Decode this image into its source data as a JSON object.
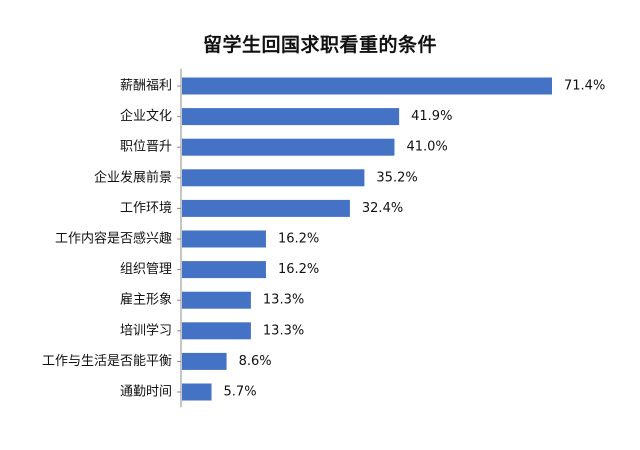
{
  "chart_data": {
    "type": "bar",
    "orientation": "horizontal",
    "title": "留学生回国求职看重的条件",
    "categories": [
      "薪酬福利",
      "企业文化",
      "职位晋升",
      "企业发展前景",
      "工作环境",
      "工作内容是否感兴趣",
      "组织管理",
      "雇主形象",
      "培训学习",
      "工作与生活是否能平衡",
      "通勤时间"
    ],
    "values": [
      71.4,
      41.9,
      41.0,
      35.2,
      32.4,
      16.2,
      16.2,
      13.3,
      13.3,
      8.6,
      5.7
    ],
    "value_labels": [
      "71.4%",
      "41.9%",
      "41.0%",
      "35.2%",
      "32.4%",
      "16.2%",
      "16.2%",
      "13.3%",
      "13.3%",
      "8.6%",
      "5.7%"
    ],
    "xlim": [
      0,
      71.4
    ],
    "grid": false,
    "legend": "none",
    "bar_color": "#4472C4"
  }
}
